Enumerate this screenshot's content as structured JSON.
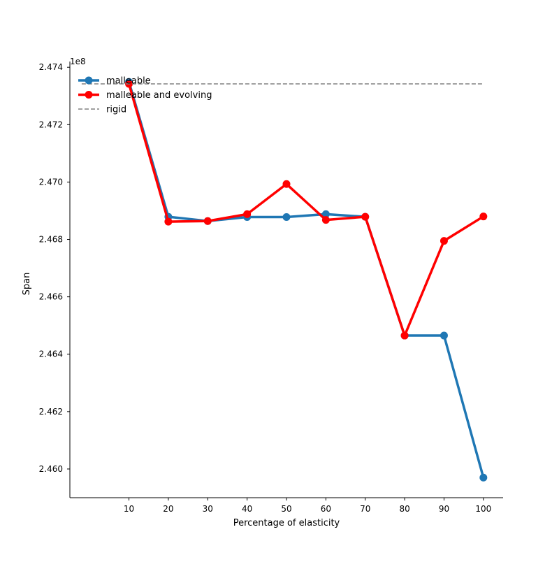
{
  "chart_data": {
    "type": "line",
    "title": "",
    "xlabel": "Percentage of elasticity",
    "ylabel": "Span",
    "y_multiplier_label": "1e8",
    "x_ticks": [
      10,
      20,
      30,
      40,
      50,
      60,
      70,
      80,
      90,
      100
    ],
    "x_tick_labels": [
      "10",
      "20",
      "30",
      "40",
      "50",
      "60",
      "70",
      "80",
      "90",
      "100"
    ],
    "xlim": [
      -5,
      105
    ],
    "y_ticks": [
      2.46,
      2.462,
      2.464,
      2.466,
      2.468,
      2.47,
      2.472,
      2.474
    ],
    "y_tick_labels": [
      "2.460",
      "2.462",
      "2.464",
      "2.466",
      "2.468",
      "2.470",
      "2.472",
      "2.474"
    ],
    "ylim": [
      2.459,
      2.4742
    ],
    "grid": false,
    "legend_location": "top-left",
    "series": [
      {
        "name": "malleable",
        "color": "#1f77b4",
        "style": "solid",
        "markers": true,
        "x": [
          10,
          20,
          30,
          40,
          50,
          60,
          70,
          80,
          90,
          100
        ],
        "values": [
          2.47349,
          2.46879,
          2.46864,
          2.46878,
          2.46878,
          2.46888,
          2.46879,
          2.46465,
          2.46465,
          2.4597
        ]
      },
      {
        "name": "malleable and evolving",
        "color": "#ff0000",
        "style": "solid",
        "markers": true,
        "x": [
          10,
          20,
          30,
          40,
          50,
          60,
          70,
          80,
          90,
          100
        ],
        "values": [
          2.47342,
          2.46862,
          2.46864,
          2.46888,
          2.46993,
          2.46868,
          2.46879,
          2.46465,
          2.46795,
          2.4688
        ]
      },
      {
        "name": "rigid",
        "color": "#808080",
        "style": "dashed",
        "markers": false,
        "x": [
          -2,
          100
        ],
        "values": [
          2.47342,
          2.47342
        ]
      }
    ]
  }
}
